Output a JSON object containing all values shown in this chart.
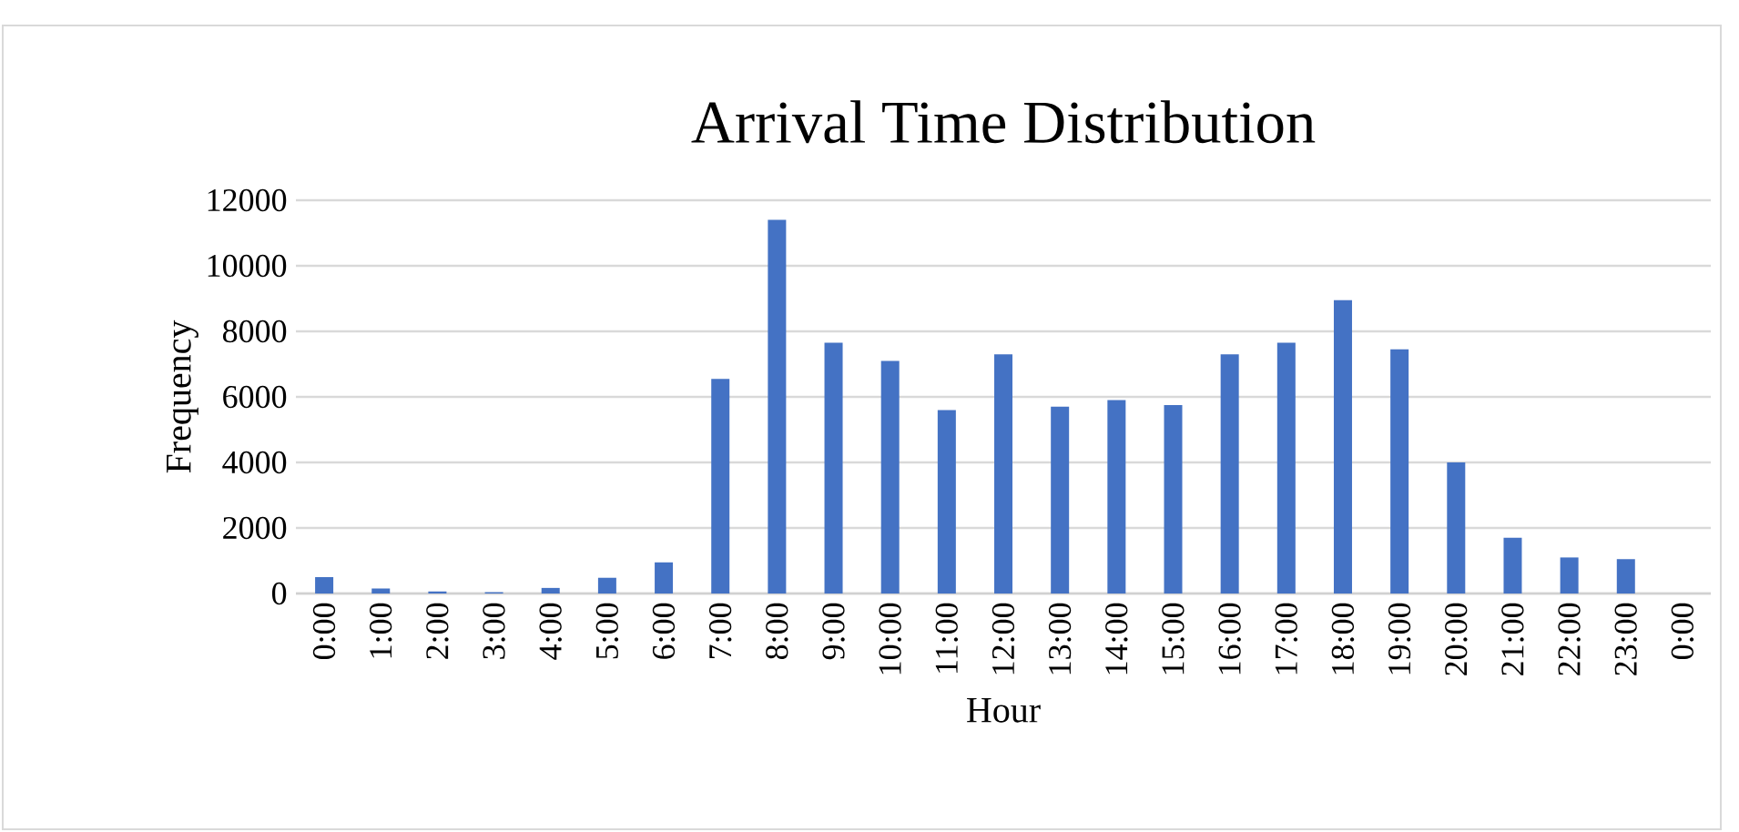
{
  "chart_data": {
    "type": "bar",
    "title": "Arrival Time Distribution",
    "xlabel": "Hour",
    "ylabel": "Frequency",
    "categories": [
      "0:00",
      "1:00",
      "2:00",
      "3:00",
      "4:00",
      "5:00",
      "6:00",
      "7:00",
      "8:00",
      "9:00",
      "10:00",
      "11:00",
      "12:00",
      "13:00",
      "14:00",
      "15:00",
      "16:00",
      "17:00",
      "18:00",
      "19:00",
      "20:00",
      "21:00",
      "22:00",
      "23:00",
      "0:00"
    ],
    "values": [
      500,
      150,
      60,
      40,
      170,
      480,
      950,
      6550,
      11400,
      7650,
      7100,
      5600,
      7300,
      5700,
      5900,
      5750,
      7300,
      7650,
      8950,
      7450,
      4000,
      1700,
      1100,
      1050,
      null
    ],
    "color": "#4472c4",
    "ylim": [
      0,
      12000
    ],
    "yticks": [
      0,
      2000,
      4000,
      6000,
      8000,
      10000,
      12000
    ],
    "grid": "y"
  }
}
